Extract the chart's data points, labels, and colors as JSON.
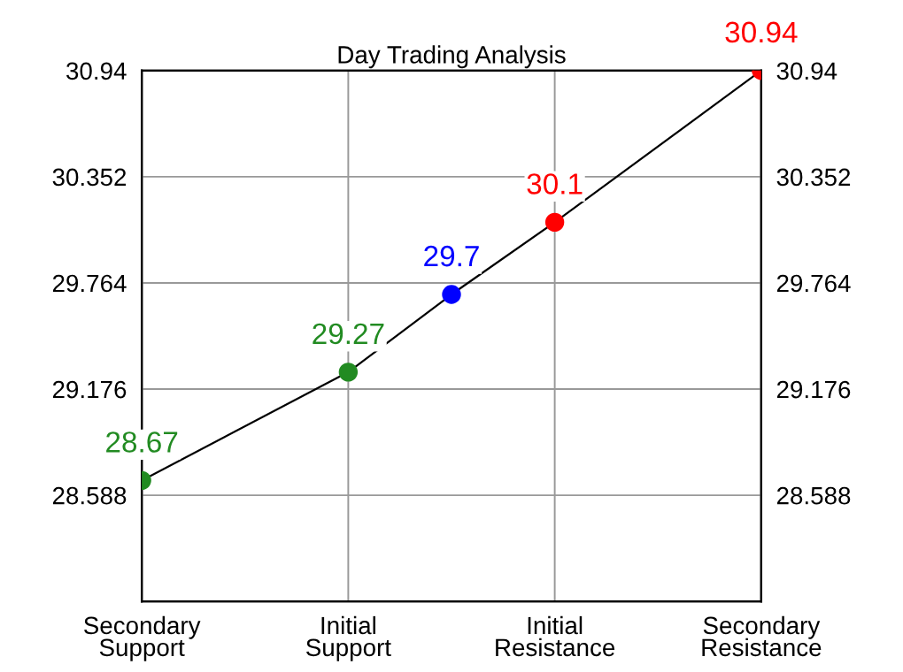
{
  "chart_data": {
    "type": "line",
    "title": "Day Trading Analysis",
    "categories": [
      "Secondary\nSupport",
      null,
      "Initial\nSupport",
      null,
      "Initial\nResistance",
      null,
      "Secondary\nResistance"
    ],
    "ylim": [
      28.0,
      30.94
    ],
    "yticks": [
      28.588,
      29.176,
      29.764,
      30.352,
      30.94
    ],
    "y2lim": [
      28.0,
      30.94
    ],
    "y2ticks": [
      28.588,
      29.176,
      29.764,
      30.352,
      30.94
    ],
    "grid": true,
    "data_labels": true,
    "series": [
      {
        "color": "#000000",
        "marker": "circle",
        "values": [
          28.67,
          null,
          29.27,
          29.7,
          30.1,
          null,
          30.94
        ],
        "colors": [
          "#228b22",
          null,
          "#228b22",
          "#0000ff",
          "#ff0000",
          null,
          "#ff0000"
        ]
      }
    ]
  }
}
